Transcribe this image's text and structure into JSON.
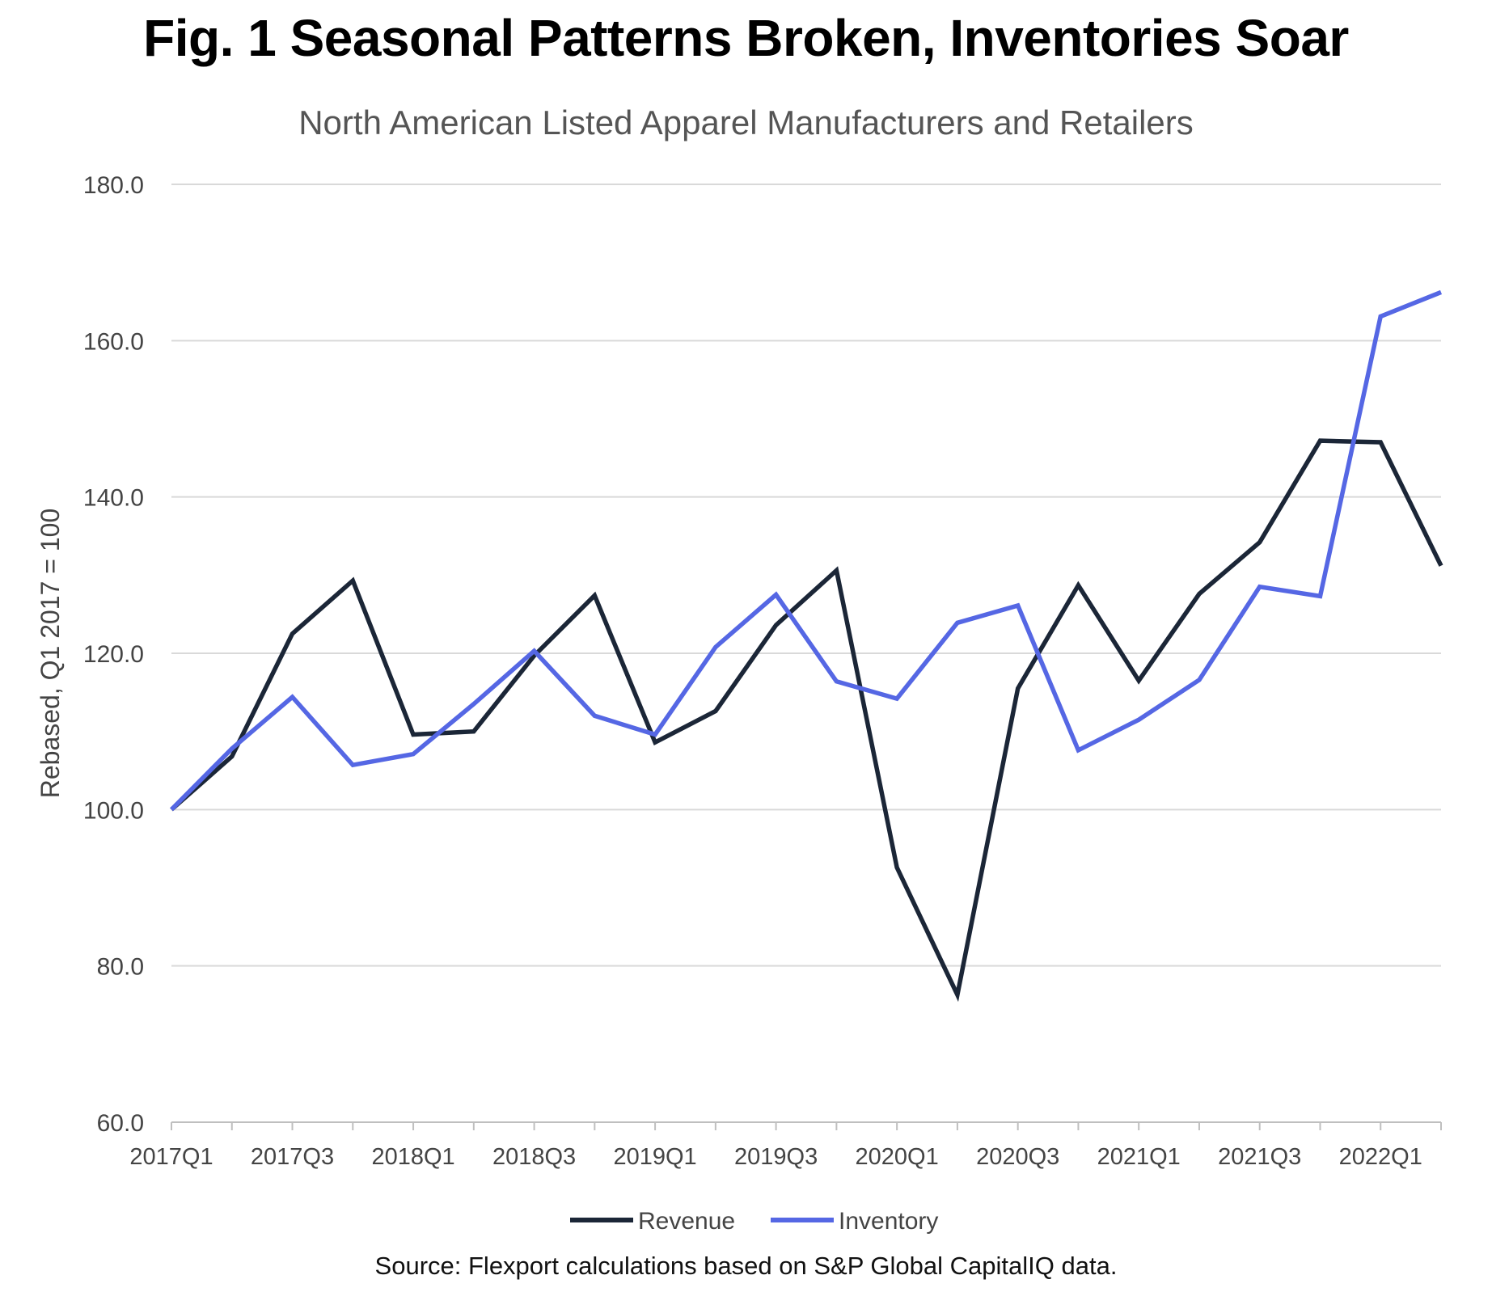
{
  "title": "Fig. 1 Seasonal Patterns Broken, Inventories Soar",
  "subtitle": "North American Listed Apparel Manufacturers and Retailers",
  "source": "Source: Flexport calculations based on S&P Global CapitalIQ data.",
  "colors": {
    "revenue": "#1b2637",
    "inventory": "#5567e4",
    "grid": "#d9d9d9",
    "axis_text": "#444444"
  },
  "chart_data": {
    "type": "line",
    "title": "Fig. 1 Seasonal Patterns Broken, Inventories Soar",
    "subtitle": "North American Listed Apparel Manufacturers and Retailers",
    "xlabel": "",
    "ylabel": "Rebased, Q1 2017 = 100",
    "ylim": [
      60,
      180
    ],
    "yticks": [
      60,
      80,
      100,
      120,
      140,
      160,
      180
    ],
    "ytick_labels": [
      "60.0",
      "80.0",
      "100.0",
      "120.0",
      "140.0",
      "160.0",
      "180.0"
    ],
    "grid": true,
    "legend_position": "bottom-center",
    "categories": [
      "2017Q1",
      "2017Q2",
      "2017Q3",
      "2017Q4",
      "2018Q1",
      "2018Q2",
      "2018Q3",
      "2018Q4",
      "2019Q1",
      "2019Q2",
      "2019Q3",
      "2019Q4",
      "2020Q1",
      "2020Q2",
      "2020Q3",
      "2020Q4",
      "2021Q1",
      "2021Q2",
      "2021Q3",
      "2021Q4",
      "2022Q1",
      "2022Q2"
    ],
    "xtick_labels": [
      "2017Q1",
      "2017Q3",
      "2018Q1",
      "2018Q3",
      "2019Q1",
      "2019Q3",
      "2020Q1",
      "2020Q3",
      "2021Q1",
      "2021Q3",
      "2022Q1"
    ],
    "series": [
      {
        "name": "Revenue",
        "color": "#1b2637",
        "values": [
          100.0,
          106.8,
          122.5,
          129.3,
          109.6,
          110.0,
          119.7,
          127.4,
          108.6,
          112.6,
          123.6,
          130.6,
          92.6,
          76.3,
          115.5,
          128.7,
          116.5,
          127.6,
          134.2,
          147.2,
          147.0,
          131.2
        ]
      },
      {
        "name": "Inventory",
        "color": "#5567e4",
        "values": [
          100.0,
          107.8,
          114.4,
          105.7,
          107.1,
          113.5,
          120.3,
          112.0,
          109.6,
          120.8,
          127.5,
          116.4,
          114.2,
          123.9,
          126.1,
          107.6,
          111.5,
          116.6,
          128.5,
          127.3,
          163.1,
          166.2
        ]
      }
    ]
  }
}
